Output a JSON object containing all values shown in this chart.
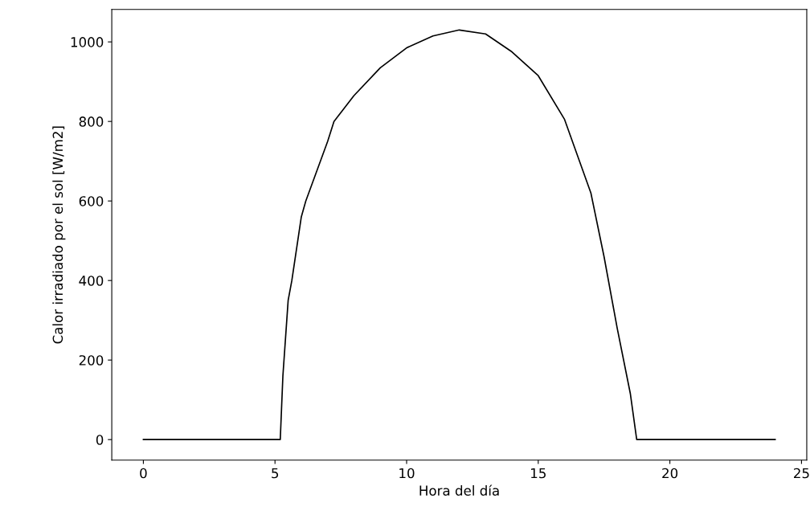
{
  "chart_data": {
    "type": "line",
    "xlabel": "Hora del día",
    "ylabel": "Calor irradiado por el sol [W/m2]",
    "x": [
      0,
      5.2,
      5.3,
      5.5,
      5.64,
      6,
      6.17,
      7,
      7.24,
      8,
      9,
      10,
      11,
      12,
      13,
      14,
      15,
      16,
      17,
      17.5,
      18,
      18.5,
      18.74,
      24
    ],
    "series": [
      {
        "color": "#000000",
        "values": [
          0,
          0,
          160,
          350,
          400,
          560,
          600,
          750,
          800,
          865,
          935,
          985,
          1015,
          1030,
          1020,
          975,
          915,
          805,
          620,
          460,
          280,
          115,
          0,
          0
        ]
      }
    ],
    "xlim": [
      -1.2,
      25.2
    ],
    "ylim": [
      -51.5,
      1081.5
    ],
    "xticks": [
      0,
      5,
      10,
      15,
      20,
      25
    ],
    "yticks": [
      0,
      200,
      400,
      600,
      800,
      1000
    ],
    "grid": false,
    "legend": false,
    "marker": "none",
    "line_style": "solid"
  }
}
